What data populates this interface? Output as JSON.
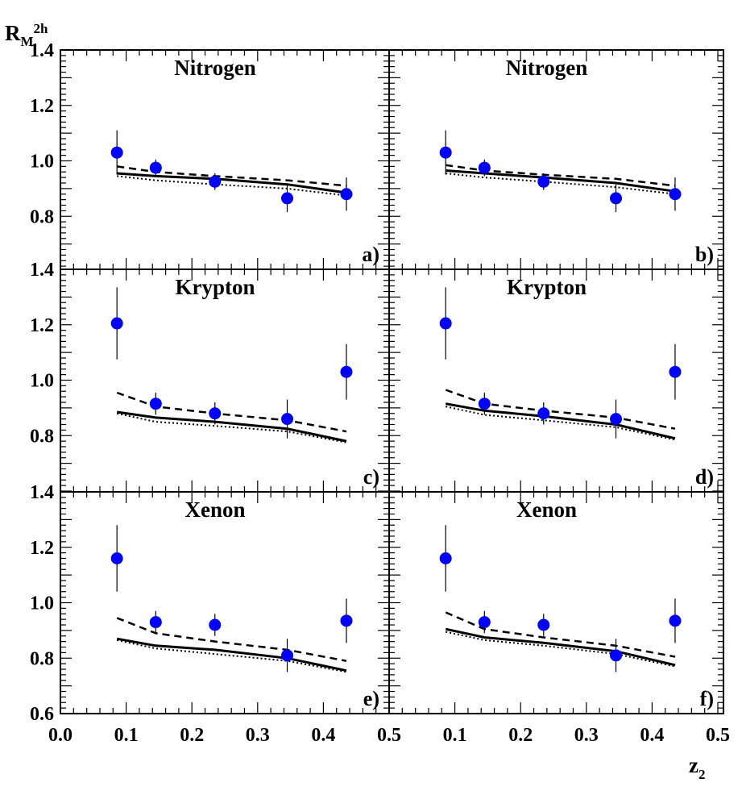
{
  "figure": {
    "y_axis_label": "R",
    "y_axis_label_sub": "M",
    "y_axis_label_sup": "2h",
    "x_axis_label": "z",
    "x_axis_label_sub": "2"
  },
  "chart_data": {
    "type": "scatter",
    "layout": "3x2 grid of panels sharing axes",
    "x_ticks": [
      "0.0",
      "0.1",
      "0.2",
      "0.3",
      "0.4",
      "0.5"
    ],
    "xlim": [
      0.0,
      0.5
    ],
    "y_ticks_top": [
      "0.8",
      "1.0",
      "1.2",
      "1.4"
    ],
    "y_ticks_middle": [
      "0.8",
      "1.0",
      "1.2",
      "1.4"
    ],
    "y_ticks_bottom": [
      "0.6",
      "0.8",
      "1.0",
      "1.2",
      "1.4"
    ],
    "ylim": [
      0.6,
      1.4
    ],
    "marker_color": "#0000ff",
    "x_points": [
      0.086,
      0.145,
      0.235,
      0.345,
      0.435
    ],
    "panels": [
      {
        "title": "Nitrogen",
        "tag": "a)",
        "points": [
          1.03,
          0.975,
          0.925,
          0.865,
          0.88
        ],
        "errors": [
          0.08,
          0.03,
          0.03,
          0.05,
          0.06
        ],
        "curves": {
          "solid": {
            "x": [
              0.086,
              0.145,
              0.235,
              0.345,
              0.435
            ],
            "y": [
              0.955,
              0.945,
              0.935,
              0.915,
              0.885
            ]
          },
          "dashed": {
            "x": [
              0.086,
              0.145,
              0.235,
              0.345,
              0.435
            ],
            "y": [
              0.98,
              0.96,
              0.945,
              0.93,
              0.91
            ]
          },
          "dotted": {
            "x": [
              0.086,
              0.145,
              0.235,
              0.345,
              0.435
            ],
            "y": [
              0.945,
              0.93,
              0.915,
              0.9,
              0.875
            ]
          }
        }
      },
      {
        "title": "Nitrogen",
        "tag": "b)",
        "points": [
          1.03,
          0.975,
          0.925,
          0.865,
          0.88
        ],
        "errors": [
          0.08,
          0.03,
          0.03,
          0.05,
          0.06
        ],
        "curves": {
          "solid": {
            "x": [
              0.086,
              0.145,
              0.235,
              0.345,
              0.435
            ],
            "y": [
              0.965,
              0.955,
              0.94,
              0.92,
              0.89
            ]
          },
          "dashed": {
            "x": [
              0.086,
              0.145,
              0.235,
              0.345,
              0.435
            ],
            "y": [
              0.985,
              0.965,
              0.95,
              0.935,
              0.91
            ]
          },
          "dotted": {
            "x": [
              0.086,
              0.145,
              0.235,
              0.345,
              0.435
            ],
            "y": [
              0.955,
              0.94,
              0.925,
              0.905,
              0.88
            ]
          }
        }
      },
      {
        "title": "Krypton",
        "tag": "c)",
        "points": [
          1.205,
          0.915,
          0.88,
          0.86,
          1.03
        ],
        "errors": [
          0.13,
          0.04,
          0.04,
          0.07,
          0.1
        ],
        "curves": {
          "solid": {
            "x": [
              0.086,
              0.145,
              0.235,
              0.345,
              0.435
            ],
            "y": [
              0.885,
              0.865,
              0.85,
              0.825,
              0.78
            ]
          },
          "dashed": {
            "x": [
              0.086,
              0.145,
              0.235,
              0.345,
              0.435
            ],
            "y": [
              0.955,
              0.905,
              0.88,
              0.855,
              0.815
            ]
          },
          "dotted": {
            "x": [
              0.086,
              0.145,
              0.235,
              0.345,
              0.435
            ],
            "y": [
              0.88,
              0.85,
              0.835,
              0.815,
              0.775
            ]
          }
        }
      },
      {
        "title": "Krypton",
        "tag": "d)",
        "points": [
          1.205,
          0.915,
          0.88,
          0.86,
          1.03
        ],
        "errors": [
          0.13,
          0.04,
          0.04,
          0.07,
          0.1
        ],
        "curves": {
          "solid": {
            "x": [
              0.086,
              0.145,
              0.235,
              0.345,
              0.435
            ],
            "y": [
              0.915,
              0.89,
              0.87,
              0.84,
              0.79
            ]
          },
          "dashed": {
            "x": [
              0.086,
              0.145,
              0.235,
              0.345,
              0.435
            ],
            "y": [
              0.965,
              0.915,
              0.89,
              0.865,
              0.825
            ]
          },
          "dotted": {
            "x": [
              0.086,
              0.145,
              0.235,
              0.345,
              0.435
            ],
            "y": [
              0.905,
              0.875,
              0.855,
              0.83,
              0.785
            ]
          }
        }
      },
      {
        "title": "Xenon",
        "tag": "e)",
        "points": [
          1.16,
          0.93,
          0.92,
          0.81,
          0.935
        ],
        "errors": [
          0.12,
          0.04,
          0.04,
          0.06,
          0.08
        ],
        "curves": {
          "solid": {
            "x": [
              0.086,
              0.145,
              0.235,
              0.345,
              0.435
            ],
            "y": [
              0.87,
              0.845,
              0.83,
              0.8,
              0.755
            ]
          },
          "dashed": {
            "x": [
              0.086,
              0.145,
              0.235,
              0.345,
              0.435
            ],
            "y": [
              0.945,
              0.89,
              0.86,
              0.83,
              0.79
            ]
          },
          "dotted": {
            "x": [
              0.086,
              0.145,
              0.235,
              0.345,
              0.435
            ],
            "y": [
              0.865,
              0.835,
              0.815,
              0.79,
              0.75
            ]
          }
        }
      },
      {
        "title": "Xenon",
        "tag": "f)",
        "points": [
          1.16,
          0.93,
          0.92,
          0.81,
          0.935
        ],
        "errors": [
          0.12,
          0.04,
          0.04,
          0.06,
          0.08
        ],
        "curves": {
          "solid": {
            "x": [
              0.086,
              0.145,
              0.235,
              0.345,
              0.435
            ],
            "y": [
              0.905,
              0.875,
              0.855,
              0.825,
              0.775
            ]
          },
          "dashed": {
            "x": [
              0.086,
              0.145,
              0.235,
              0.345,
              0.435
            ],
            "y": [
              0.965,
              0.905,
              0.875,
              0.845,
              0.805
            ]
          },
          "dotted": {
            "x": [
              0.086,
              0.145,
              0.235,
              0.345,
              0.435
            ],
            "y": [
              0.895,
              0.865,
              0.845,
              0.815,
              0.77
            ]
          }
        }
      }
    ]
  }
}
